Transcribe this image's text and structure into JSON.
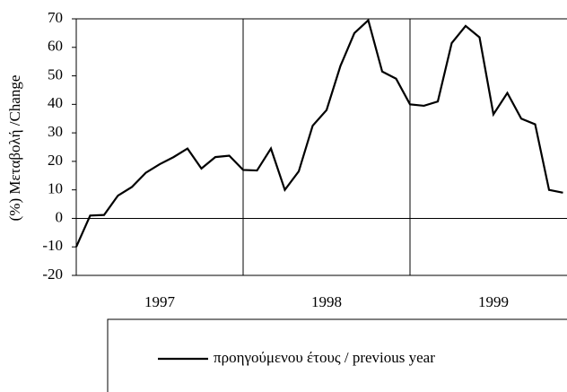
{
  "chart_data": {
    "type": "line",
    "y_label": "(%) Μεταβολή /Change",
    "groups": [
      "1997",
      "1998",
      "1999"
    ],
    "series": [
      {
        "name": "προηγούμενου έτους / previous year",
        "color": "#000000",
        "values": [
          -10,
          1,
          1.2,
          8,
          11,
          16,
          19,
          21.5,
          24.5,
          17.5,
          21.5,
          22,
          17,
          16.8,
          24.5,
          10,
          16.5,
          32.5,
          38,
          53.5,
          65,
          69.5,
          51.5,
          49,
          40,
          39.5,
          41,
          61.5,
          67.5,
          63.5,
          36.5,
          44,
          35,
          33,
          10,
          9
        ]
      }
    ],
    "ylim": [
      -20,
      70
    ],
    "yticks": [
      -20,
      -10,
      0,
      10,
      20,
      30,
      40,
      50,
      60,
      70
    ]
  }
}
